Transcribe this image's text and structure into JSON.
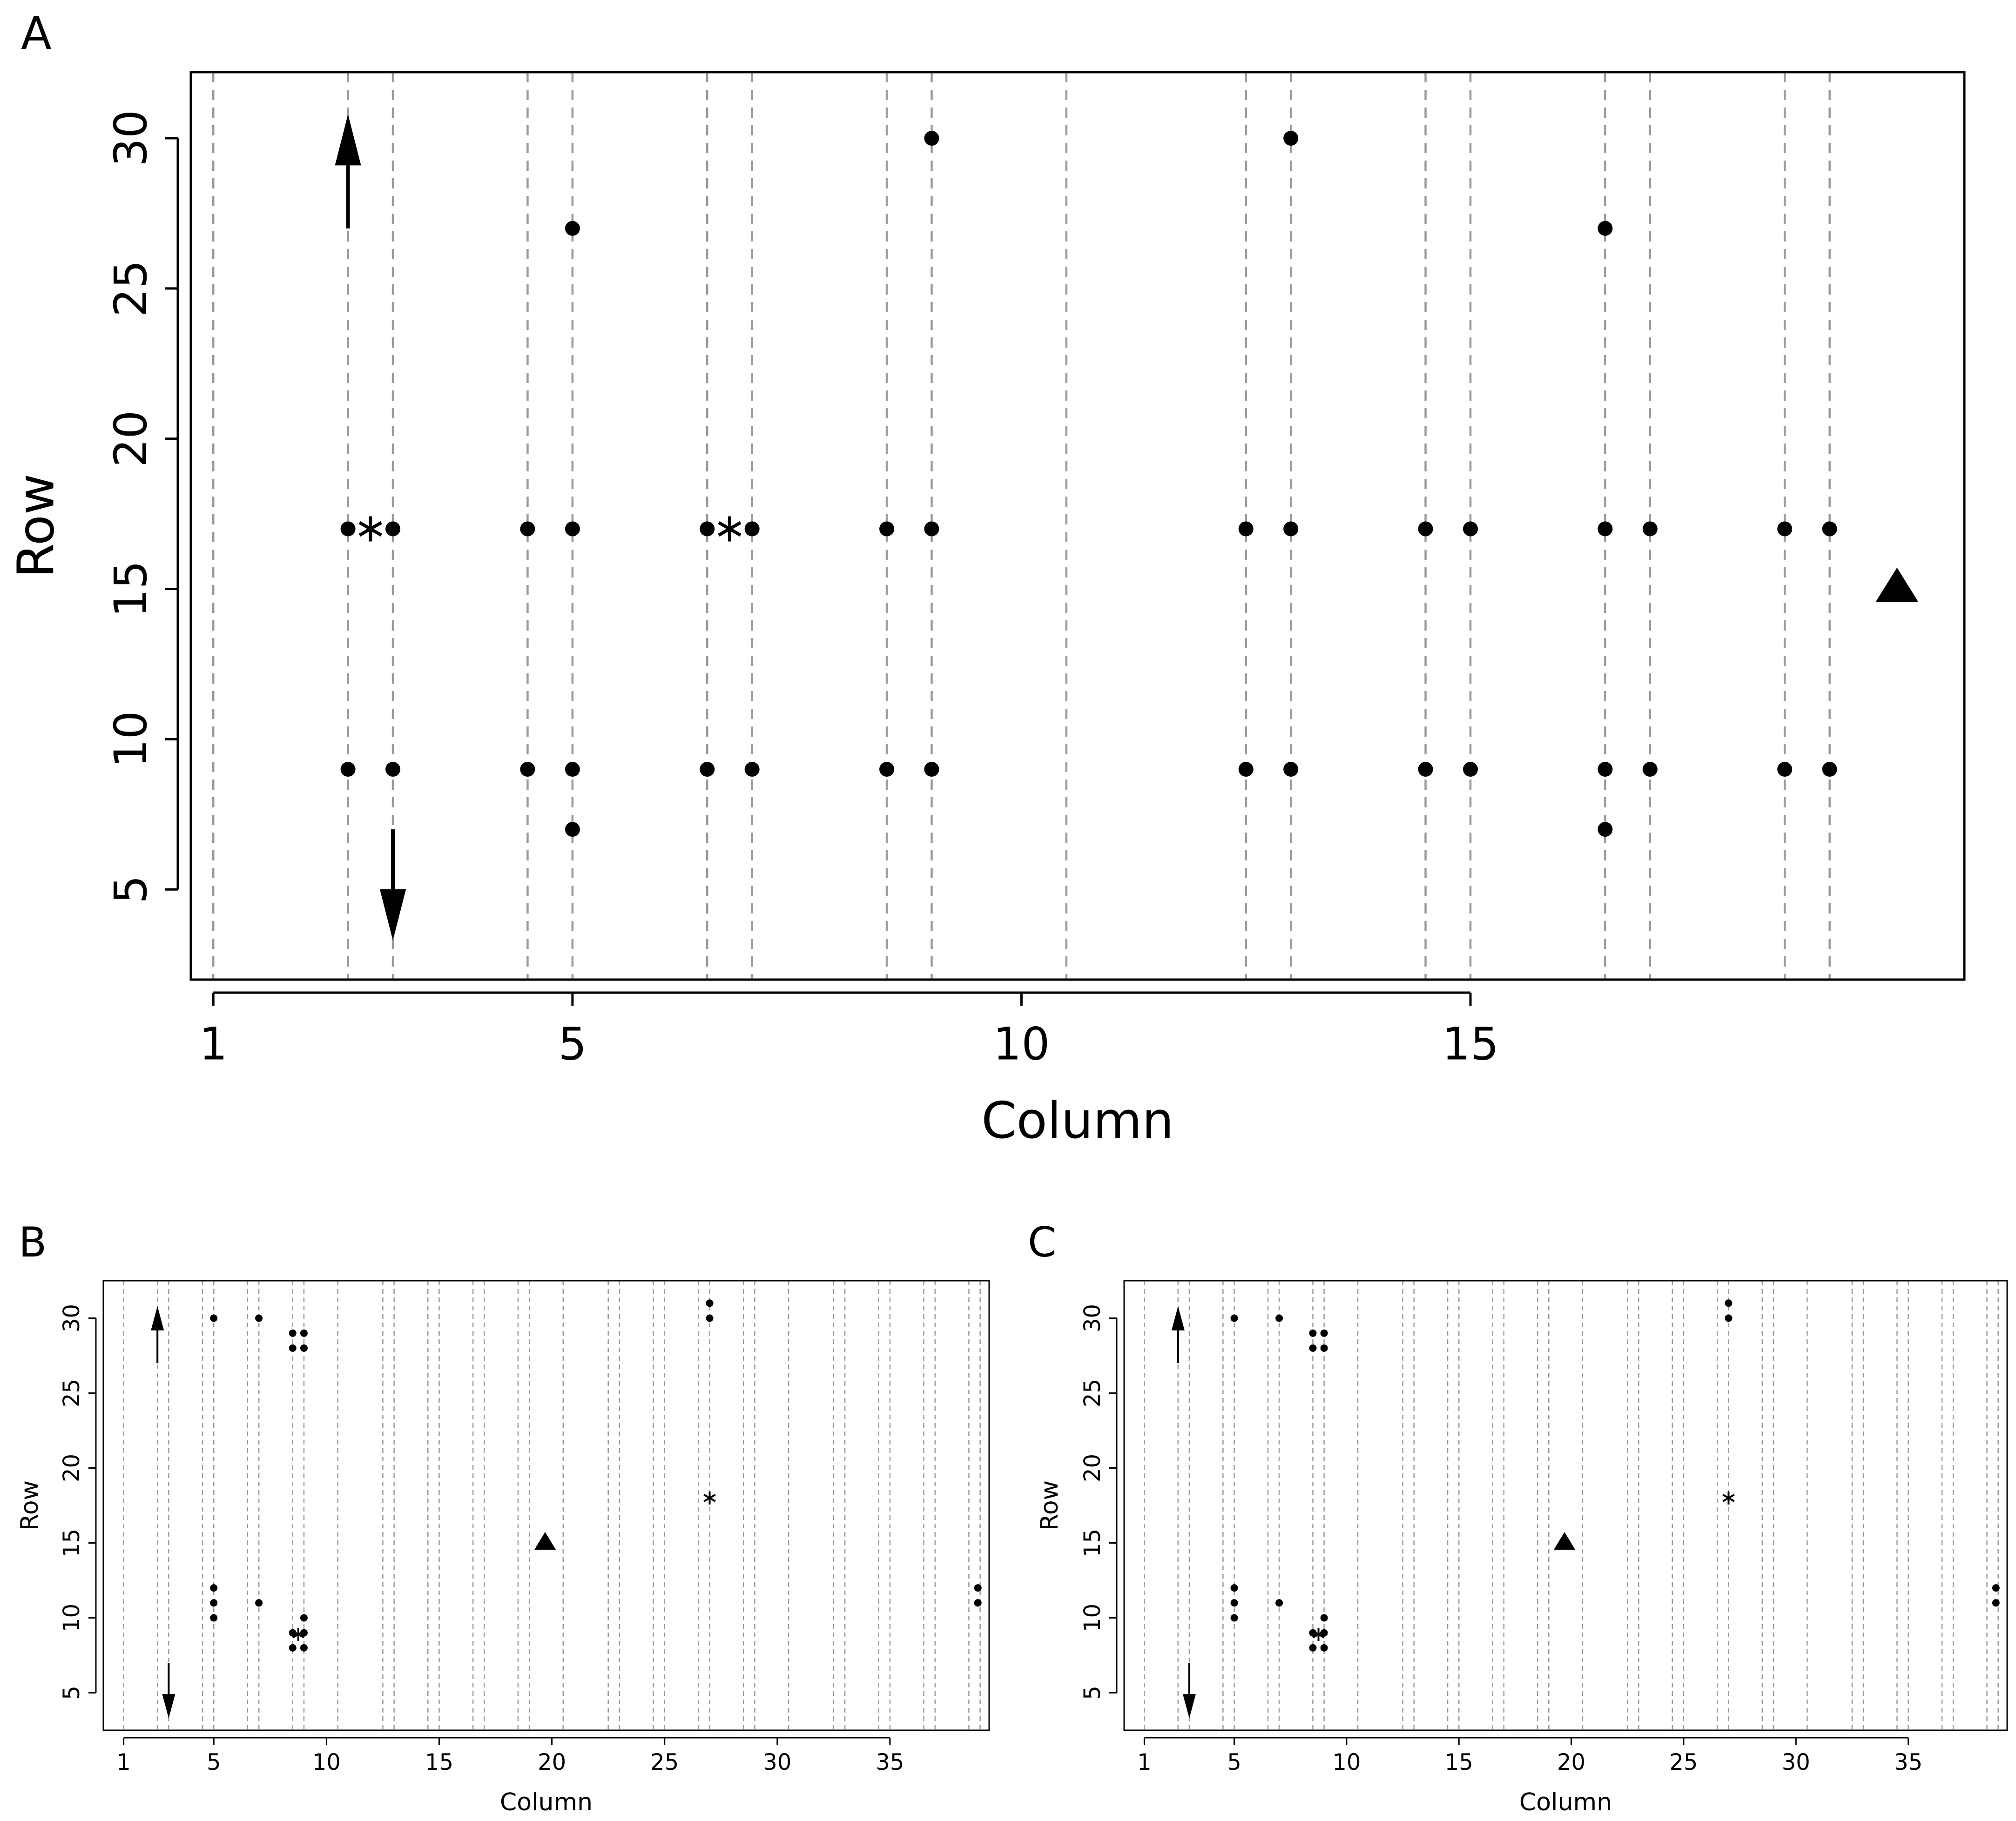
{
  "chart_data": [
    {
      "panel_label": "A",
      "type": "scatter",
      "xlabel": "Column",
      "ylabel": "Row",
      "xlim": [
        0.75,
        20.5
      ],
      "ylim": [
        2.0,
        32.2
      ],
      "xticks": [
        1,
        5,
        10,
        15
      ],
      "yticks": [
        5,
        10,
        15,
        20,
        25,
        30
      ],
      "dashed_vlines": [
        1,
        2.5,
        3,
        4.5,
        5,
        6.5,
        7,
        8.5,
        9,
        10.5,
        12.5,
        13,
        14.5,
        15,
        16.5,
        17,
        18.5,
        19
      ],
      "dashed_color": "#9a9a9a",
      "points": [
        {
          "x": 2.5,
          "y": 17
        },
        {
          "x": 3,
          "y": 17
        },
        {
          "x": 4.5,
          "y": 17
        },
        {
          "x": 5,
          "y": 17
        },
        {
          "x": 6.5,
          "y": 17
        },
        {
          "x": 7,
          "y": 17
        },
        {
          "x": 8.5,
          "y": 17
        },
        {
          "x": 9,
          "y": 17
        },
        {
          "x": 12.5,
          "y": 17
        },
        {
          "x": 13,
          "y": 17
        },
        {
          "x": 14.5,
          "y": 17
        },
        {
          "x": 15,
          "y": 17
        },
        {
          "x": 16.5,
          "y": 17
        },
        {
          "x": 17,
          "y": 17
        },
        {
          "x": 18.5,
          "y": 17
        },
        {
          "x": 19,
          "y": 17
        },
        {
          "x": 2.5,
          "y": 9
        },
        {
          "x": 3,
          "y": 9
        },
        {
          "x": 4.5,
          "y": 9
        },
        {
          "x": 5,
          "y": 9
        },
        {
          "x": 6.5,
          "y": 9
        },
        {
          "x": 7,
          "y": 9
        },
        {
          "x": 8.5,
          "y": 9
        },
        {
          "x": 9,
          "y": 9
        },
        {
          "x": 12.5,
          "y": 9
        },
        {
          "x": 13,
          "y": 9
        },
        {
          "x": 14.5,
          "y": 9
        },
        {
          "x": 15,
          "y": 9
        },
        {
          "x": 16.5,
          "y": 9
        },
        {
          "x": 17,
          "y": 9
        },
        {
          "x": 18.5,
          "y": 9
        },
        {
          "x": 19,
          "y": 9
        },
        {
          "x": 5,
          "y": 27
        },
        {
          "x": 5,
          "y": 7
        },
        {
          "x": 9,
          "y": 30
        },
        {
          "x": 13,
          "y": 30
        },
        {
          "x": 16.5,
          "y": 27
        },
        {
          "x": 16.5,
          "y": 7
        }
      ],
      "stars": [
        {
          "x": 2.75,
          "y": 17
        },
        {
          "x": 6.75,
          "y": 17
        }
      ],
      "triangles": [
        {
          "x": 19.75,
          "y": 15
        }
      ],
      "arrows": [
        {
          "x": 2.5,
          "y_from": 27,
          "y_to": 30.8
        },
        {
          "x": 3,
          "y_from": 7,
          "y_to": 3.3
        }
      ]
    },
    {
      "panel_label": "B",
      "type": "scatter",
      "xlabel": "Column",
      "ylabel": "Row",
      "xlim": [
        0.1,
        39.4
      ],
      "ylim": [
        2.5,
        32.5
      ],
      "xticks": [
        1,
        5,
        10,
        15,
        20,
        25,
        30,
        35
      ],
      "yticks": [
        5,
        10,
        15,
        20,
        25,
        30
      ],
      "dashed_vlines": [
        1,
        2.5,
        3,
        4.5,
        5,
        6.5,
        7,
        8.5,
        9,
        10.5,
        12.5,
        13,
        14.5,
        15,
        16.5,
        17,
        18.5,
        19,
        20.5,
        22.5,
        23,
        24.5,
        25,
        26.5,
        27,
        28.5,
        29,
        30.5,
        32.5,
        33,
        34.5,
        35,
        36.5,
        37,
        38.5,
        39
      ],
      "dashed_color": "#9a9a9a",
      "points": [
        {
          "x": 5,
          "y": 30
        },
        {
          "x": 7,
          "y": 30
        },
        {
          "x": 8.5,
          "y": 29
        },
        {
          "x": 9,
          "y": 29
        },
        {
          "x": 8.5,
          "y": 28
        },
        {
          "x": 9,
          "y": 28
        },
        {
          "x": 27,
          "y": 31
        },
        {
          "x": 27,
          "y": 30
        },
        {
          "x": 5,
          "y": 12
        },
        {
          "x": 5,
          "y": 11
        },
        {
          "x": 5,
          "y": 10
        },
        {
          "x": 7,
          "y": 11
        },
        {
          "x": 9,
          "y": 10
        },
        {
          "x": 8.5,
          "y": 9
        },
        {
          "x": 9,
          "y": 9
        },
        {
          "x": 8.5,
          "y": 8
        },
        {
          "x": 9,
          "y": 8
        },
        {
          "x": 38.9,
          "y": 12
        },
        {
          "x": 38.9,
          "y": 11
        }
      ],
      "stars": [
        {
          "x": 8.75,
          "y": 8.9
        },
        {
          "x": 27,
          "y": 18
        }
      ],
      "triangles": [
        {
          "x": 19.7,
          "y": 15
        }
      ],
      "arrows": [
        {
          "x": 2.5,
          "y_from": 27,
          "y_to": 30.8
        },
        {
          "x": 3,
          "y_from": 7,
          "y_to": 3.3
        }
      ]
    },
    {
      "panel_label": "C",
      "type": "scatter",
      "xlabel": "Column",
      "ylabel": "Row",
      "xlim": [
        0.1,
        39.4
      ],
      "ylim": [
        2.5,
        32.5
      ],
      "xticks": [
        1,
        5,
        10,
        15,
        20,
        25,
        30,
        35
      ],
      "yticks": [
        5,
        10,
        15,
        20,
        25,
        30
      ],
      "dashed_vlines": [
        1,
        2.5,
        3,
        4.5,
        5,
        6.5,
        7,
        8.5,
        9,
        10.5,
        12.5,
        13,
        14.5,
        15,
        16.5,
        17,
        18.5,
        19,
        20.5,
        22.5,
        23,
        24.5,
        25,
        26.5,
        27,
        28.5,
        29,
        30.5,
        32.5,
        33,
        34.5,
        35,
        36.5,
        37,
        38.5,
        39
      ],
      "dashed_color": "#9a9a9a",
      "points": [
        {
          "x": 5,
          "y": 30
        },
        {
          "x": 7,
          "y": 30
        },
        {
          "x": 8.5,
          "y": 29
        },
        {
          "x": 9,
          "y": 29
        },
        {
          "x": 8.5,
          "y": 28
        },
        {
          "x": 9,
          "y": 28
        },
        {
          "x": 27,
          "y": 31
        },
        {
          "x": 27,
          "y": 30
        },
        {
          "x": 5,
          "y": 12
        },
        {
          "x": 5,
          "y": 11
        },
        {
          "x": 5,
          "y": 10
        },
        {
          "x": 7,
          "y": 11
        },
        {
          "x": 9,
          "y": 10
        },
        {
          "x": 8.5,
          "y": 9
        },
        {
          "x": 9,
          "y": 9
        },
        {
          "x": 8.5,
          "y": 8
        },
        {
          "x": 9,
          "y": 8
        },
        {
          "x": 38.9,
          "y": 12
        },
        {
          "x": 38.9,
          "y": 11
        }
      ],
      "stars": [
        {
          "x": 8.75,
          "y": 8.9
        },
        {
          "x": 27,
          "y": 18
        }
      ],
      "triangles": [
        {
          "x": 19.7,
          "y": 15
        }
      ],
      "arrows": [
        {
          "x": 2.5,
          "y_from": 27,
          "y_to": 30.8
        },
        {
          "x": 3,
          "y_from": 7,
          "y_to": 3.3
        }
      ]
    }
  ]
}
